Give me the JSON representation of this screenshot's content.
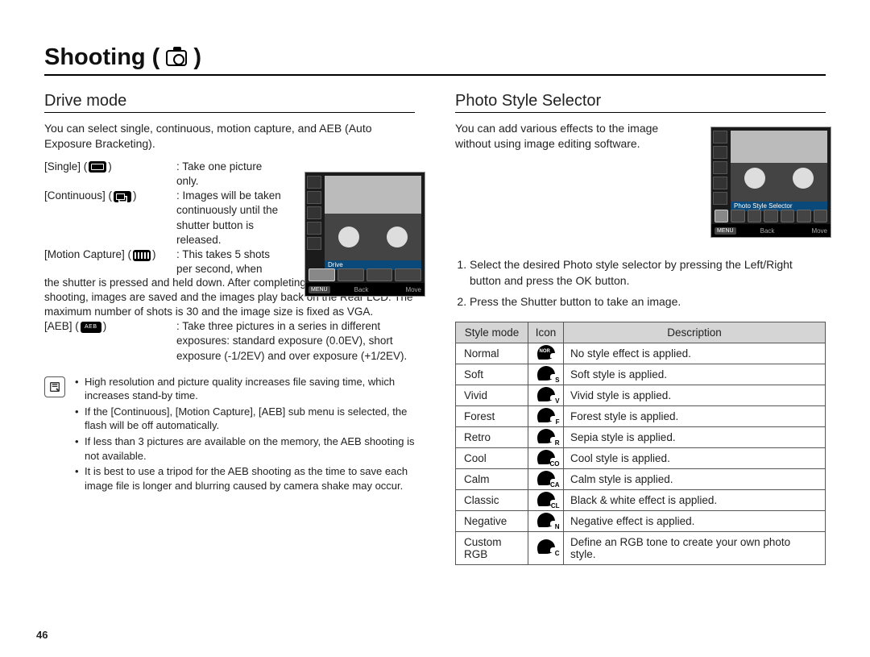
{
  "page": {
    "title_prefix": "Shooting (",
    "title_suffix": ")",
    "number": "46"
  },
  "left": {
    "heading": "Drive mode",
    "intro": "You can select single, continuous, motion capture, and AEB (Auto Exposure Bracketing).",
    "items": {
      "single": {
        "label": "[Single] (",
        "label_end": ")",
        "desc": ": Take one picture only."
      },
      "continuous": {
        "label": "[Continuous] (",
        "label_end": ")",
        "desc": ": Images will be taken continuously until the shutter button is released."
      },
      "motion": {
        "label": "[Motion Capture] (",
        "label_end": ")",
        "desc_lead": ": This takes 5 shots per second, when",
        "desc_full": "the shutter is pressed and held down. After completing the continuous shooting, images are saved and the images play back on the Rear LCD. The maximum number of shots is 30 and the image size is fixed as VGA."
      },
      "aeb": {
        "label": "[AEB] (",
        "label_end": ")",
        "desc": ": Take three pictures in a series in different exposures: standard exposure (0.0EV), short exposure (-1/2EV) and over exposure (+1/2EV)."
      }
    },
    "screenshot": {
      "label": "Drive",
      "back": "Back",
      "move": "Move",
      "menu": "MENU"
    },
    "notes": [
      "High resolution and picture quality increases file saving time, which increases stand-by time.",
      "If the [Continuous], [Motion Capture], [AEB] sub menu is selected, the flash will be off automatically.",
      "If less than 3 pictures are available on the memory, the AEB shooting is not available.",
      "It is best to use a tripod for the AEB shooting as the time to save each image file is longer and blurring caused by camera shake may occur."
    ]
  },
  "right": {
    "heading": "Photo Style Selector",
    "intro": "You can add various effects to the image without using image editing software.",
    "screenshot": {
      "label": "Photo Style Selector",
      "back": "Back",
      "move": "Move",
      "menu": "MENU"
    },
    "steps": [
      "Select the desired Photo style selector by pressing the Left/Right button and press the OK button.",
      "Press the Shutter button to take an image."
    ],
    "table": {
      "headers": {
        "mode": "Style mode",
        "icon": "Icon",
        "desc": "Description"
      },
      "rows": [
        {
          "mode": "Normal",
          "sub": "",
          "desc": "No style effect is applied."
        },
        {
          "mode": "Soft",
          "sub": "S",
          "desc": "Soft style is applied."
        },
        {
          "mode": "Vivid",
          "sub": "V",
          "desc": "Vivid style is applied."
        },
        {
          "mode": "Forest",
          "sub": "F",
          "desc": "Forest style is applied."
        },
        {
          "mode": "Retro",
          "sub": "R",
          "desc": "Sepia style is applied."
        },
        {
          "mode": "Cool",
          "sub": "CO",
          "desc": "Cool style is applied."
        },
        {
          "mode": "Calm",
          "sub": "CA",
          "desc": "Calm style is applied."
        },
        {
          "mode": "Classic",
          "sub": "CL",
          "desc": "Black & white effect is applied."
        },
        {
          "mode": "Negative",
          "sub": "N",
          "desc": "Negative effect is applied."
        },
        {
          "mode": "Custom RGB",
          "sub": "C",
          "desc": "Define an RGB tone to create your own photo style."
        }
      ]
    }
  }
}
